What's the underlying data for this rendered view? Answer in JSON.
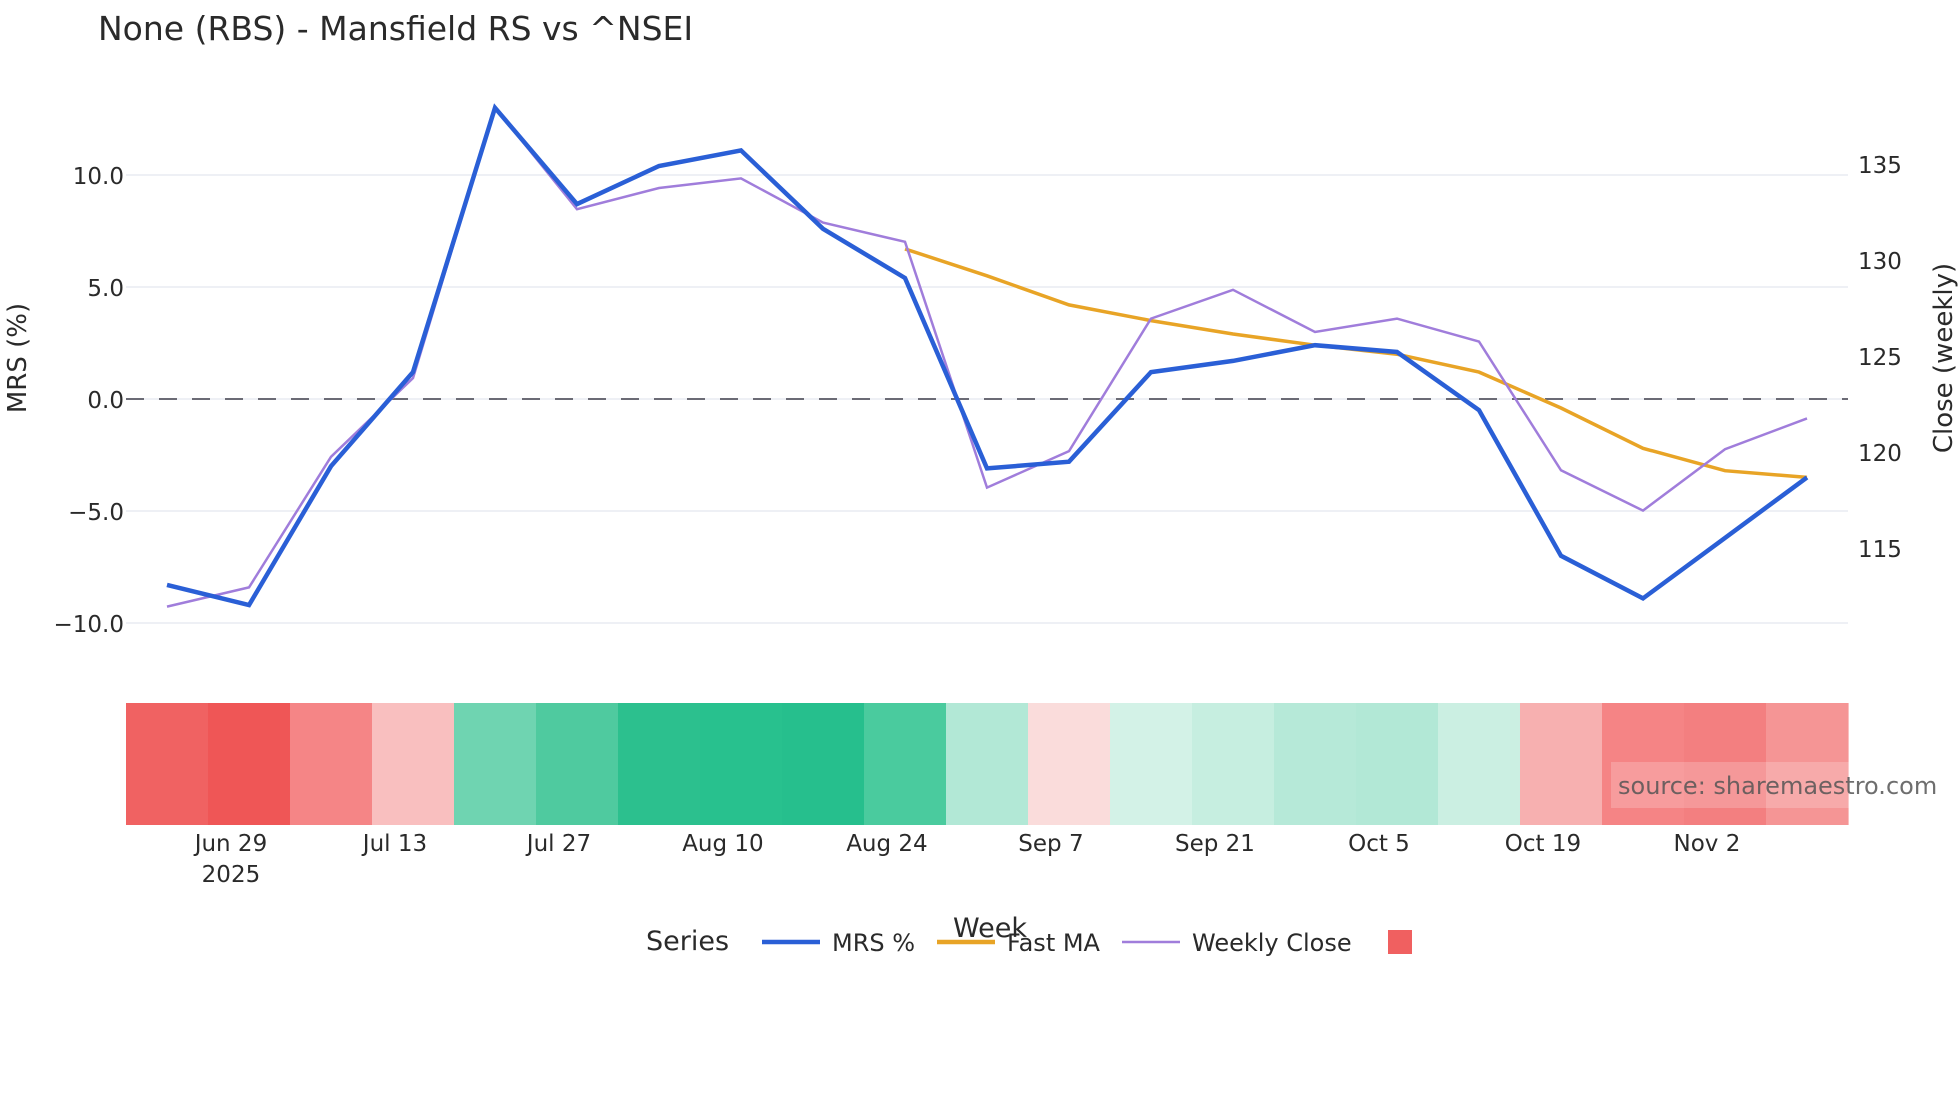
{
  "title": "None (RBS) - Mansfield RS vs ^NSEI",
  "watermark": "source: sharemaestro.com",
  "colors": {
    "mrs": "#2a5fd6",
    "fast_ma": "#e8a426",
    "weekly_close": "#a07ddb",
    "zero_line": "#6b6b75",
    "grid": "#eef0f5",
    "text": "#2a2a2a"
  },
  "legend": {
    "title": "Series",
    "items": [
      {
        "label": "MRS %",
        "color": "#2a5fd6",
        "kind": "line-thick"
      },
      {
        "label": "Fast MA",
        "color": "#e8a426",
        "kind": "line-thick"
      },
      {
        "label": "Weekly Close",
        "color": "#a07ddb",
        "kind": "line-thin"
      },
      {
        "label": "",
        "color": "#f06060",
        "kind": "square"
      }
    ]
  },
  "chart_data": {
    "type": "line",
    "title": "None (RBS) - Mansfield RS vs ^NSEI",
    "xlabel": "Week",
    "ylabel": "MRS (%)",
    "y2label": "Close (weekly)",
    "ylim": [
      -11.5,
      13.8
    ],
    "y2lim": [
      110.5,
      141.5
    ],
    "yticks": [
      10.0,
      5.0,
      0.0,
      -5.0,
      -10.0
    ],
    "ytick_labels": [
      "10.0",
      "5.0",
      "0.0",
      "−5.0",
      "−10.0"
    ],
    "y2ticks": [
      135,
      130,
      125,
      120,
      115
    ],
    "y2tick_labels": [
      "135",
      "130",
      "125",
      "120",
      "115"
    ],
    "xtick_labels": [
      "Jun 29",
      "Jul 13",
      "Jul 27",
      "Aug 10",
      "Aug 24",
      "Sep 7",
      "Sep 21",
      "Oct 5",
      "Oct 19",
      "Nov 2"
    ],
    "xtick_sublabel": "2025",
    "xtick_week_index": [
      1.28,
      3.28,
      5.28,
      7.28,
      9.28,
      11.28,
      13.28,
      15.28,
      17.28,
      19.28
    ],
    "grid": true,
    "zero_line": "dashed",
    "legend_position": "bottom",
    "x": [
      "2025-06-20",
      "2025-06-27",
      "2025-07-04",
      "2025-07-11",
      "2025-07-18",
      "2025-07-25",
      "2025-08-01",
      "2025-08-08",
      "2025-08-15",
      "2025-08-22",
      "2025-08-29",
      "2025-09-05",
      "2025-09-12",
      "2025-09-19",
      "2025-09-26",
      "2025-10-03",
      "2025-10-10",
      "2025-10-17",
      "2025-10-24",
      "2025-10-31",
      "2025-11-07"
    ],
    "series": [
      {
        "name": "MRS %",
        "axis": "left",
        "values": [
          -8.3,
          -9.2,
          -3.0,
          1.2,
          13.0,
          8.7,
          10.4,
          11.1,
          7.6,
          5.4,
          -3.1,
          -2.8,
          1.2,
          1.7,
          2.4,
          2.1,
          -0.5,
          -7.0,
          -8.9,
          -6.2,
          -3.5
        ]
      },
      {
        "name": "Fast MA",
        "axis": "left",
        "values": [
          null,
          null,
          null,
          null,
          null,
          null,
          null,
          null,
          null,
          6.7,
          5.5,
          4.2,
          3.5,
          2.9,
          2.4,
          2.0,
          1.2,
          -0.4,
          -2.2,
          -3.2,
          -3.5
        ]
      },
      {
        "name": "Weekly Close",
        "axis": "right",
        "values": [
          112.0,
          113.0,
          119.8,
          123.9,
          138.0,
          132.7,
          133.8,
          134.3,
          132.0,
          131.0,
          118.2,
          120.1,
          127.0,
          128.5,
          126.3,
          127.0,
          125.8,
          119.1,
          117.0,
          120.2,
          121.8
        ]
      }
    ],
    "heatmap_strip": {
      "description": "Weekly MRS regime strip (red = negative, green = positive)",
      "colors": [
        "#f06262",
        "#ef5656",
        "#f58586",
        "#f9bfbf",
        "#6fd4b1",
        "#4fca9f",
        "#2cc08e",
        "#28c18e",
        "#26bf8d",
        "#4acb9e",
        "#b2e8d6",
        "#fadcdb",
        "#d3f2e7",
        "#c6eee0",
        "#b6e9d8",
        "#b2e8d6",
        "#cbefe2",
        "#f7b0b0",
        "#f58485",
        "#f37f80",
        "#f59595"
      ]
    }
  }
}
